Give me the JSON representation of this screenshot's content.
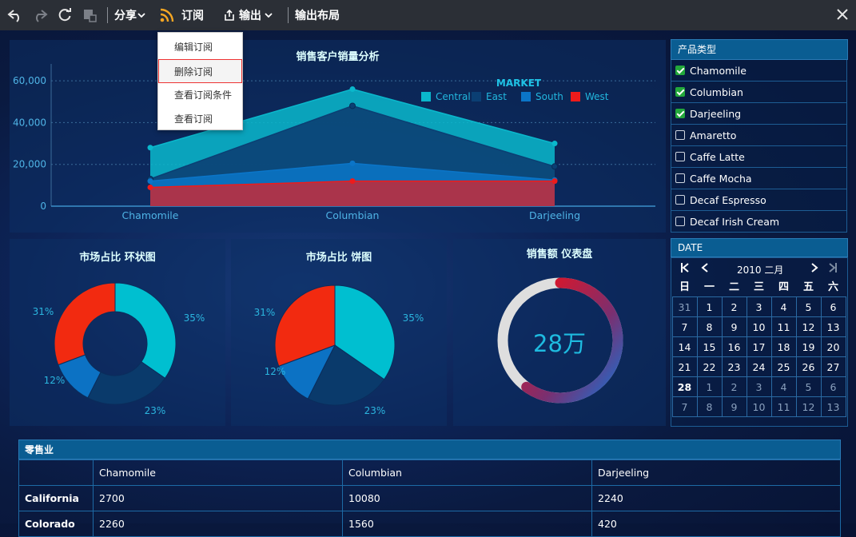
{
  "toolbar": {
    "share_label": "分享",
    "subscribe_label": "订阅",
    "export_label": "输出",
    "export_layout_label": "输出布局"
  },
  "dropdown": {
    "items": [
      "编辑订阅",
      "删除订阅",
      "查看订阅条件",
      "查看订阅"
    ]
  },
  "area_chart": {
    "title": "销售客户销量分析",
    "legend_title": "MARKET"
  },
  "chart_data": [
    {
      "type": "area",
      "title": "销售客户销量分析",
      "categories": [
        "Chamomile",
        "Columbian",
        "Darjeeling"
      ],
      "ylim": [
        0,
        65000
      ],
      "yticks": [
        "0",
        "20,000",
        "40,000",
        "60,000"
      ],
      "legend_title": "MARKET",
      "legend_position": "top-right",
      "grid": true,
      "series": [
        {
          "name": "Central",
          "color": "#0ab8cc",
          "values": [
            28000,
            56000,
            30000
          ]
        },
        {
          "name": "East",
          "color": "#0b3f73",
          "values": [
            13000,
            48000,
            19000
          ]
        },
        {
          "name": "South",
          "color": "#0b75c8",
          "values": [
            12000,
            20500,
            12500
          ]
        },
        {
          "name": "West",
          "color": "#ee1b1b",
          "values": [
            9000,
            12000,
            12000
          ]
        }
      ]
    },
    {
      "type": "pie",
      "title": "市场占比 环状图",
      "donut": true,
      "slices": [
        {
          "label": "35%",
          "value": 35,
          "color": "#00bfd0"
        },
        {
          "label": "23%",
          "value": 23,
          "color": "#0a3a6b"
        },
        {
          "label": "12%",
          "value": 12,
          "color": "#0c72c4"
        },
        {
          "label": "31%",
          "value": 31,
          "color": "#f22a10"
        }
      ]
    },
    {
      "type": "pie",
      "title": "市场占比 饼图",
      "donut": false,
      "slices": [
        {
          "label": "35%",
          "value": 35,
          "color": "#00bfd0"
        },
        {
          "label": "23%",
          "value": 23,
          "color": "#0a3a6b"
        },
        {
          "label": "12%",
          "value": 12,
          "color": "#0c72c4"
        },
        {
          "label": "31%",
          "value": 31,
          "color": "#f22a10"
        }
      ]
    }
  ],
  "gauge": {
    "title": "销售额 仪表盘",
    "value_label": "28万",
    "fill_fraction": 0.6
  },
  "product_filter": {
    "header": "产品类型",
    "items": [
      {
        "label": "Chamomile",
        "checked": true
      },
      {
        "label": "Columbian",
        "checked": true
      },
      {
        "label": "Darjeeling",
        "checked": true
      },
      {
        "label": "Amaretto",
        "checked": false
      },
      {
        "label": "Caffe Latte",
        "checked": false
      },
      {
        "label": "Caffe Mocha",
        "checked": false
      },
      {
        "label": "Decaf Espresso",
        "checked": false
      },
      {
        "label": "Decaf Irish Cream",
        "checked": false
      }
    ]
  },
  "date_filter": {
    "header": "DATE",
    "month_label": "2010 二月",
    "weekdays": [
      "日",
      "一",
      "二",
      "三",
      "四",
      "五",
      "六"
    ],
    "weeks": [
      [
        "31",
        "1",
        "2",
        "3",
        "4",
        "5",
        "6"
      ],
      [
        "7",
        "8",
        "9",
        "10",
        "11",
        "12",
        "13"
      ],
      [
        "14",
        "15",
        "16",
        "17",
        "18",
        "19",
        "20"
      ],
      [
        "21",
        "22",
        "23",
        "24",
        "25",
        "26",
        "27"
      ],
      [
        "28",
        "1",
        "2",
        "3",
        "4",
        "5",
        "6"
      ],
      [
        "7",
        "8",
        "9",
        "10",
        "11",
        "12",
        "13"
      ]
    ]
  },
  "retail_table": {
    "title": "零售业",
    "columns": [
      "",
      "Chamomile",
      "Columbian",
      "Darjeeling"
    ],
    "rows": [
      [
        "California",
        "2700",
        "10080",
        "2240"
      ],
      [
        "Colorado",
        "2260",
        "1560",
        "420"
      ]
    ]
  }
}
